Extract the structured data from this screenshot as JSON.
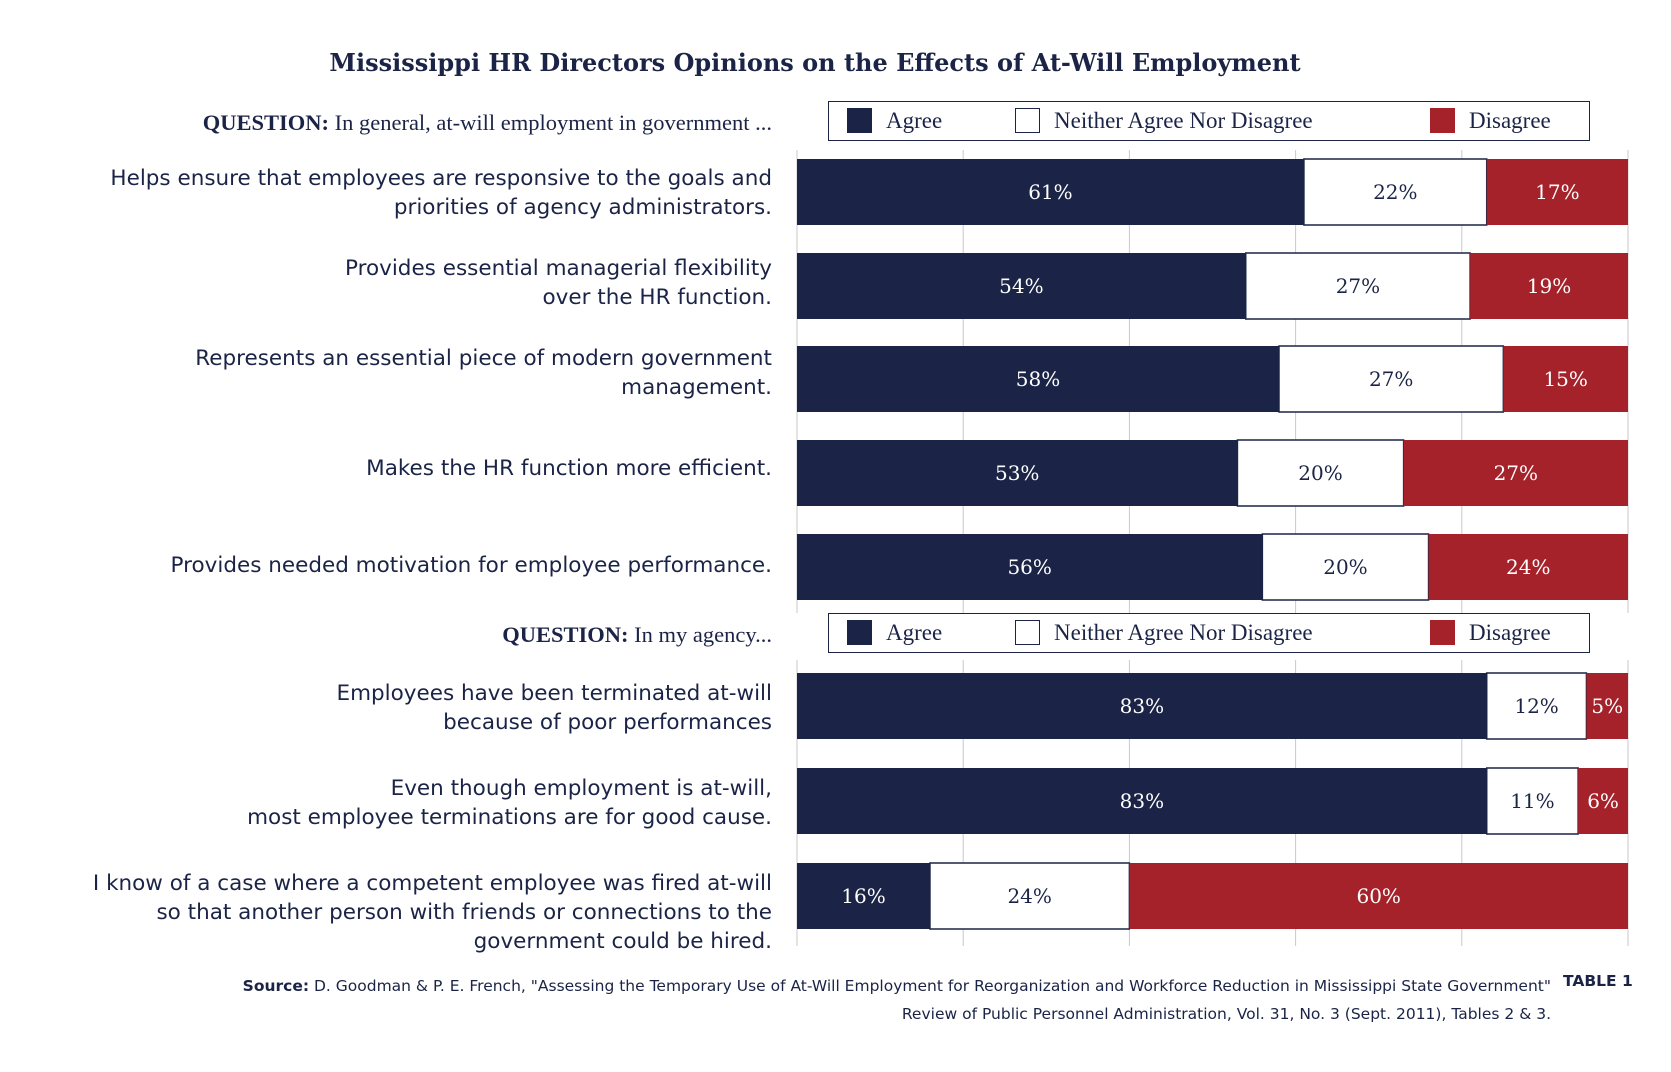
{
  "chart_data": {
    "type": "bar",
    "orientation": "horizontal",
    "stacked": true,
    "title": "Mississippi HR Directors Opinions on the Effects of At-Will Employment",
    "legend": [
      "Agree",
      "Neither Agree Nor Disagree",
      "Disagree"
    ],
    "colors": {
      "Agree": "#1b2446",
      "Neither Agree Nor Disagree": "#ffffff",
      "Disagree": "#a5222a"
    },
    "xlim": [
      0,
      100
    ],
    "grid": true,
    "groups": [
      {
        "question_label": "QUESTION:",
        "question_text": " In general, at-will employment in government ...",
        "categories": [
          "Helps ensure that employees are responsive to the goals and\npriorities of agency administrators.",
          "Provides essential managerial flexibility\nover the HR function.",
          "Represents an essential piece of modern government\nmanagement.",
          "Makes the HR function more efficient.",
          "Provides needed motivation for employee performance."
        ],
        "series": [
          {
            "name": "Agree",
            "values": [
              61,
              54,
              58,
              53,
              56
            ],
            "labels": [
              "61%",
              "54%",
              "58%",
              "53%",
              "56%"
            ]
          },
          {
            "name": "Neither Agree Nor Disagree",
            "values": [
              22,
              27,
              27,
              20,
              20
            ],
            "labels": [
              "22%",
              "27%",
              "27%",
              "20%",
              "20%"
            ]
          },
          {
            "name": "Disagree",
            "values": [
              17,
              19,
              15,
              27,
              24
            ],
            "labels": [
              "17%",
              "19%",
              "15%",
              "27%",
              "24%"
            ]
          }
        ]
      },
      {
        "question_label": "QUESTION:",
        "question_text": " In my agency...",
        "categories": [
          "Employees have been terminated at-will\nbecause of poor performances",
          "Even though employment is at-will,\nmost employee terminations are for good cause.",
          "I know of a case where a competent employee was fired at-will\nso that another person with friends or connections to the\ngovernment could be hired."
        ],
        "series": [
          {
            "name": "Agree",
            "values": [
              83,
              83,
              16
            ],
            "labels": [
              "83%",
              "83%",
              "16%"
            ]
          },
          {
            "name": "Neither Agree Nor Disagree",
            "values": [
              12,
              11,
              24
            ],
            "labels": [
              "12%",
              "11%",
              "24%"
            ]
          },
          {
            "name": "Disagree",
            "values": [
              5,
              6,
              60
            ],
            "labels": [
              "5%",
              "6%",
              "60%"
            ]
          }
        ]
      }
    ]
  },
  "source": {
    "label": "Source:",
    "text": " D. Goodman & P. E. French, \"Assessing the Temporary Use of At-Will Employment for Reorganization and Workforce Reduction in Mississippi State Government\"\nReview of Public Personnel Administration, Vol. 31, No. 3 (Sept. 2011), Tables 2 & 3.",
    "tag": "TABLE 1"
  }
}
